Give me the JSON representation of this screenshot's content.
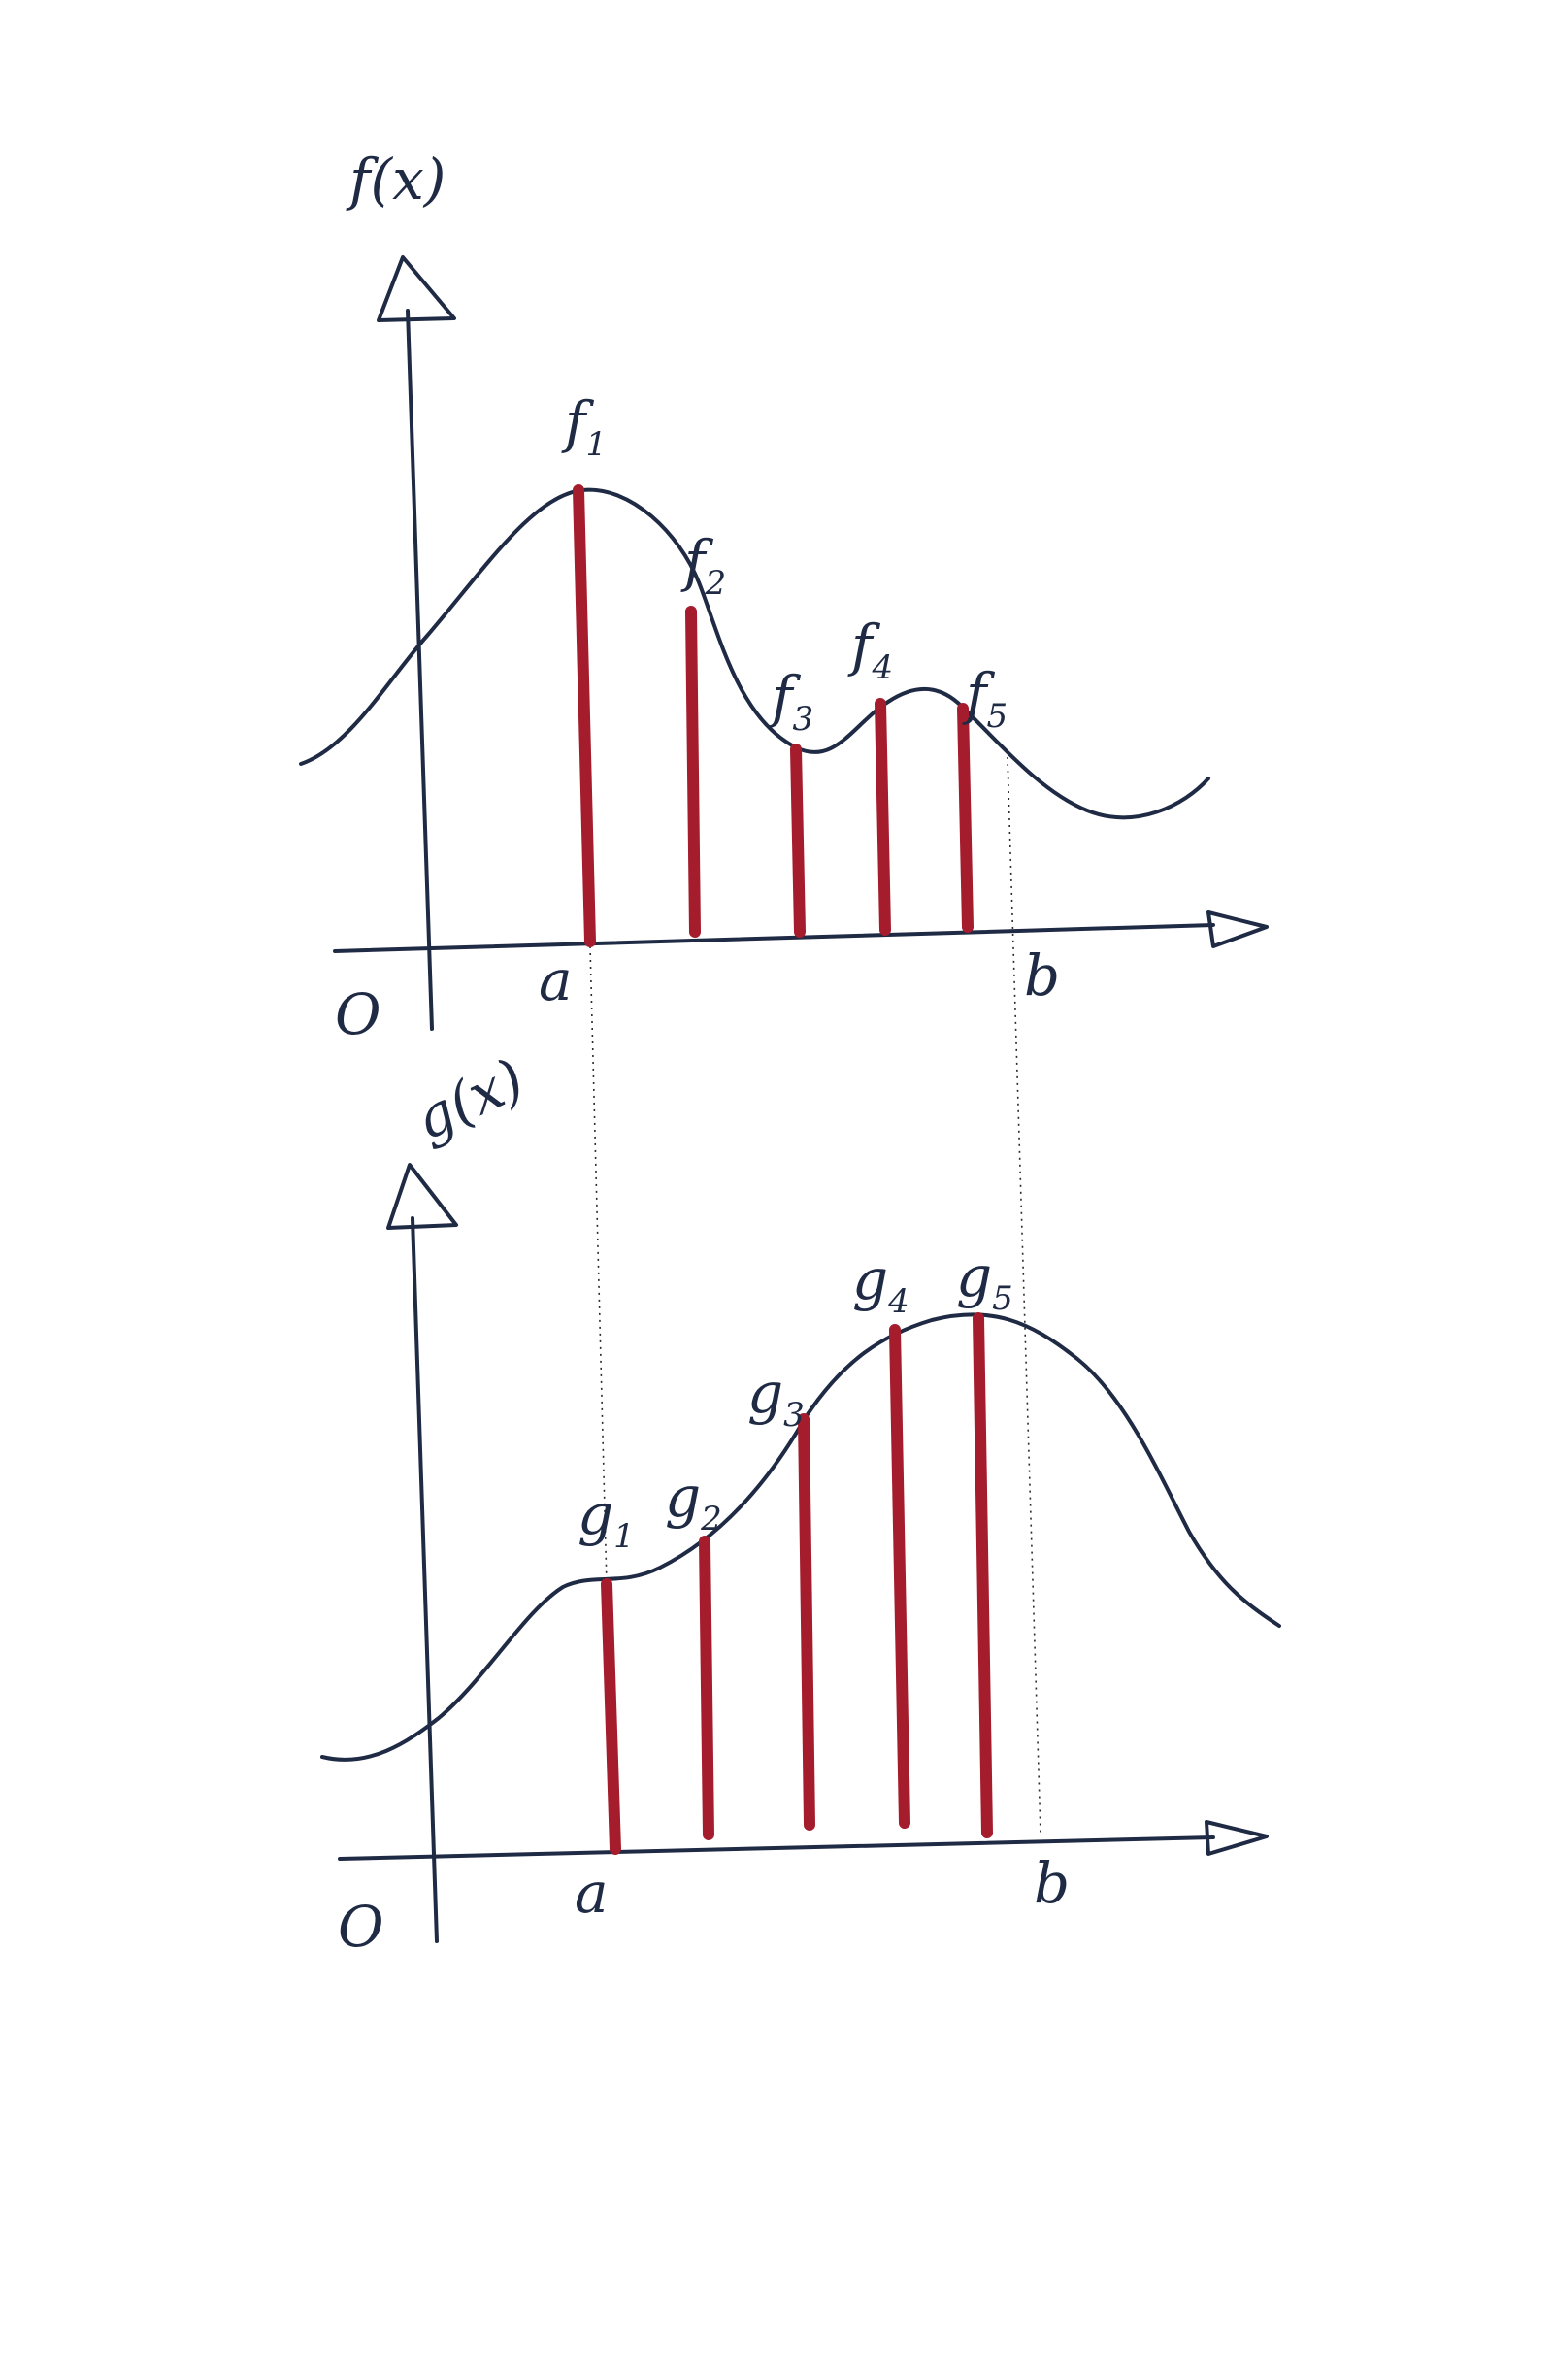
{
  "top_plot": {
    "axis_label": "f(x)",
    "origin_label": "O",
    "a_label": "a",
    "b_label": "b",
    "samples": [
      {
        "base": "f",
        "sub": "1"
      },
      {
        "base": "f",
        "sub": "2"
      },
      {
        "base": "f",
        "sub": "3"
      },
      {
        "base": "f",
        "sub": "4"
      },
      {
        "base": "f",
        "sub": "5"
      }
    ]
  },
  "bottom_plot": {
    "axis_label": "g(x)",
    "origin_label": "O",
    "a_label": "a",
    "b_label": "b",
    "samples": [
      {
        "base": "g",
        "sub": "1"
      },
      {
        "base": "g",
        "sub": "2"
      },
      {
        "base": "g",
        "sub": "3"
      },
      {
        "base": "g",
        "sub": "4"
      },
      {
        "base": "g",
        "sub": "5"
      }
    ]
  },
  "colors": {
    "ink": "#1f2a44",
    "sample_lines": "#a51d2d"
  }
}
